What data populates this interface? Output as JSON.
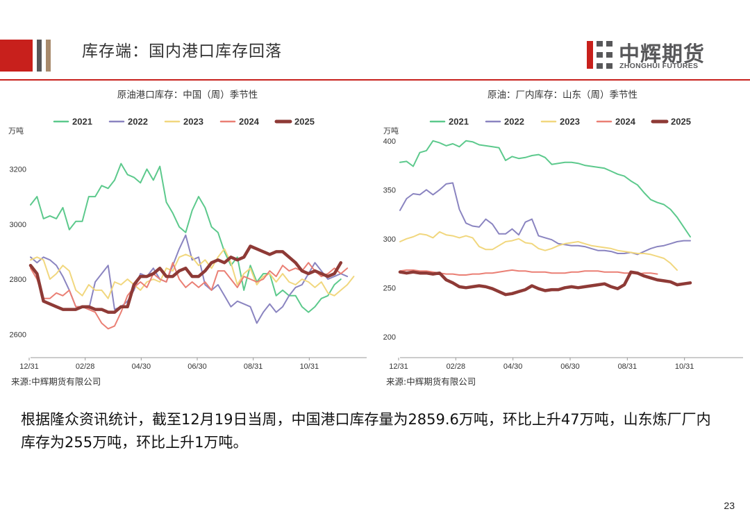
{
  "header": {
    "title": "库存端：国内港口库存回落"
  },
  "logo": {
    "cn": "中辉期货",
    "en": "ZHONGHUI FUTURES"
  },
  "colors": {
    "accent": "#c8201c",
    "2021": "#5cc98c",
    "2022": "#8a84c0",
    "2023": "#f1d77e",
    "2024": "#ea7f74",
    "2025": "#8e3a36"
  },
  "chart_data": [
    {
      "type": "line",
      "title": "原油港口库存：中国（周）季节性",
      "unit": "万吨",
      "ylim": [
        2520,
        3330
      ],
      "yticks": [
        2600,
        2800,
        3000,
        3200
      ],
      "xticks": [
        "12/31",
        "02/28",
        "04/30",
        "06/30",
        "08/31",
        "10/31"
      ],
      "x_range": [
        0,
        52
      ],
      "legend": [
        "2021",
        "2022",
        "2023",
        "2024",
        "2025"
      ],
      "source": "来源:中辉期货有限公司",
      "series": [
        {
          "name": "2021",
          "values": [
            3070,
            3100,
            3020,
            3030,
            3020,
            3060,
            2980,
            3010,
            3010,
            3100,
            3100,
            3140,
            3130,
            3160,
            3220,
            3180,
            3170,
            3150,
            3200,
            3160,
            3210,
            3080,
            3040,
            2990,
            2970,
            3050,
            3100,
            3060,
            2990,
            2970,
            2900,
            2850,
            2880,
            2760,
            2850,
            2790,
            2820,
            2820,
            2740,
            2760,
            2740,
            2740,
            2700,
            2680,
            2700,
            2730,
            2740,
            2780,
            2800
          ]
        },
        {
          "name": "2022",
          "values": [
            2880,
            2860,
            2880,
            2870,
            2850,
            2810,
            2760,
            2700,
            2700,
            2690,
            2790,
            2820,
            2850,
            2690,
            2700,
            2720,
            2760,
            2820,
            2810,
            2840,
            2800,
            2790,
            2850,
            2910,
            2960,
            2870,
            2880,
            2780,
            2760,
            2780,
            2740,
            2700,
            2720,
            2710,
            2700,
            2640,
            2680,
            2710,
            2680,
            2700,
            2740,
            2770,
            2780,
            2820,
            2860,
            2830,
            2800,
            2810,
            2820,
            2810
          ]
        },
        {
          "name": "2023",
          "values": [
            2870,
            2880,
            2870,
            2800,
            2820,
            2850,
            2830,
            2760,
            2740,
            2780,
            2760,
            2760,
            2730,
            2790,
            2780,
            2800,
            2780,
            2760,
            2790,
            2800,
            2790,
            2840,
            2830,
            2880,
            2890,
            2880,
            2850,
            2870,
            2840,
            2880,
            2910,
            2860,
            2780,
            2820,
            2840,
            2780,
            2810,
            2820,
            2790,
            2820,
            2790,
            2780,
            2800,
            2790,
            2770,
            2790,
            2750,
            2740,
            2760,
            2780,
            2810
          ]
        },
        {
          "name": "2024",
          "values": [
            2840,
            2800,
            2730,
            2730,
            2750,
            2740,
            2760,
            2700,
            2700,
            2690,
            2680,
            2640,
            2620,
            2630,
            2680,
            2740,
            2770,
            2790,
            2770,
            2820,
            2800,
            2790,
            2860,
            2800,
            2770,
            2790,
            2770,
            2790,
            2760,
            2830,
            2830,
            2800,
            2770,
            2810,
            2800,
            2790,
            2800,
            2830,
            2810,
            2850,
            2830,
            2840,
            2830,
            2860,
            2830,
            2810,
            2820,
            2840,
            2820,
            2840
          ]
        },
        {
          "name": "2025",
          "values": [
            2850,
            2820,
            2720,
            2710,
            2700,
            2690,
            2690,
            2690,
            2700,
            2700,
            2690,
            2690,
            2680,
            2680,
            2700,
            2700,
            2780,
            2810,
            2810,
            2820,
            2840,
            2810,
            2810,
            2830,
            2840,
            2810,
            2810,
            2830,
            2860,
            2870,
            2860,
            2880,
            2870,
            2880,
            2920,
            2910,
            2900,
            2890,
            2900,
            2900,
            2880,
            2860,
            2830,
            2820,
            2830,
            2820,
            2810,
            2820,
            2860
          ]
        }
      ]
    },
    {
      "type": "line",
      "title": "原油：厂内库存：山东（周）季节性",
      "unit": "万吨",
      "ylim": [
        180,
        402
      ],
      "yticks": [
        200,
        250,
        300,
        350,
        400
      ],
      "xticks": [
        "12/31",
        "02/28",
        "04/30",
        "06/30",
        "08/31",
        "10/31"
      ],
      "x_range": [
        0,
        52
      ],
      "legend": [
        "2021",
        "2022",
        "2023",
        "2024",
        "2025"
      ],
      "source": "来源:中辉期货有限公司",
      "series": [
        {
          "name": "2021",
          "values": [
            378,
            379,
            374,
            388,
            390,
            400,
            398,
            395,
            397,
            394,
            400,
            399,
            396,
            395,
            394,
            393,
            380,
            384,
            382,
            383,
            385,
            386,
            383,
            376,
            377,
            378,
            378,
            377,
            375,
            374,
            373,
            372,
            369,
            366,
            364,
            359,
            355,
            347,
            340,
            337,
            335,
            330,
            322,
            312,
            302
          ]
        },
        {
          "name": "2022",
          "values": [
            329,
            341,
            346,
            345,
            350,
            345,
            350,
            356,
            357,
            330,
            316,
            313,
            312,
            320,
            315,
            305,
            305,
            310,
            304,
            317,
            320,
            303,
            301,
            299,
            295,
            294,
            293,
            293,
            292,
            290,
            288,
            288,
            287,
            285,
            285,
            286,
            284,
            287,
            290,
            292,
            293,
            295,
            297,
            298,
            298
          ]
        },
        {
          "name": "2023",
          "values": [
            297,
            300,
            302,
            305,
            304,
            301,
            307,
            304,
            303,
            301,
            303,
            301,
            292,
            289,
            289,
            293,
            297,
            298,
            300,
            296,
            295,
            290,
            288,
            290,
            293,
            295,
            296,
            297,
            295,
            293,
            292,
            291,
            290,
            288,
            287,
            286,
            285,
            285,
            284,
            282,
            280,
            275,
            268
          ]
        },
        {
          "name": "2024",
          "values": [
            267,
            268,
            268,
            267,
            267,
            266,
            265,
            264,
            264,
            263,
            263,
            264,
            264,
            265,
            265,
            266,
            267,
            268,
            267,
            267,
            266,
            266,
            266,
            265,
            265,
            265,
            266,
            266,
            267,
            267,
            267,
            266,
            266,
            266,
            265,
            265,
            264,
            265,
            265,
            264
          ]
        },
        {
          "name": "2025",
          "values": [
            266,
            265,
            266,
            265,
            265,
            264,
            265,
            258,
            255,
            251,
            250,
            251,
            252,
            251,
            249,
            246,
            243,
            244,
            246,
            248,
            252,
            249,
            247,
            248,
            248,
            250,
            251,
            250,
            251,
            252,
            253,
            254,
            251,
            249,
            253,
            266,
            265,
            262,
            260,
            258,
            257,
            256,
            253,
            254,
            255
          ]
        }
      ]
    }
  ],
  "body": {
    "text": "根据隆众资讯统计，截至12月19日当周，中国港口库存量为2859.6万吨，环比上升47万吨，山东炼厂厂内库存为255万吨，环比上升1万吨。"
  },
  "page_number": "23"
}
